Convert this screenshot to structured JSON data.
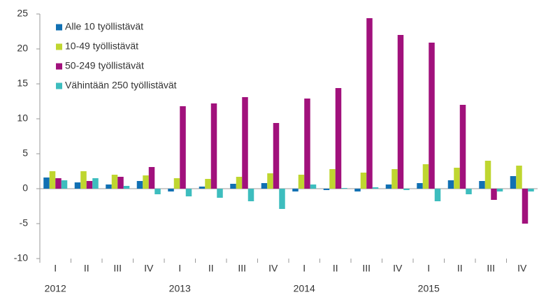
{
  "chart_data": {
    "type": "bar",
    "categories": [
      "I",
      "II",
      "III",
      "IV",
      "I",
      "II",
      "III",
      "IV",
      "I",
      "II",
      "III",
      "IV",
      "I",
      "II",
      "III",
      "IV"
    ],
    "years": [
      "2012",
      "2013",
      "2014",
      "2015"
    ],
    "series": [
      {
        "name": "Alle 10 työllistävät",
        "color": "#1170b3",
        "values": [
          1.6,
          0.9,
          0.6,
          1.1,
          -0.4,
          0.3,
          0.7,
          0.8,
          -0.4,
          -0.2,
          -0.4,
          0.6,
          0.8,
          1.2,
          1.1,
          1.8
        ]
      },
      {
        "name": "10-49 työllistävät",
        "color": "#bfd630",
        "values": [
          2.5,
          2.5,
          2.0,
          1.9,
          1.5,
          1.4,
          1.7,
          2.2,
          2.0,
          2.8,
          2.3,
          2.8,
          3.5,
          3.0,
          4.0,
          3.3
        ]
      },
      {
        "name": "50-249 työllistävät",
        "color": "#a1117c",
        "values": [
          1.5,
          1.1,
          1.7,
          3.1,
          11.8,
          12.2,
          13.1,
          9.4,
          12.9,
          14.4,
          24.4,
          22.0,
          20.9,
          12.0,
          -1.6,
          -5.0
        ]
      },
      {
        "name": "Vähintään 250 työllistävät",
        "color": "#3dbdbe",
        "values": [
          1.2,
          1.5,
          0.4,
          -0.8,
          -1.1,
          -1.3,
          -1.8,
          -2.9,
          0.6,
          0.1,
          0.2,
          -0.2,
          -1.8,
          -0.8,
          -0.4,
          -0.4
        ]
      }
    ],
    "ylim": [
      -10,
      25
    ],
    "yticks": [
      -10,
      -5,
      0,
      5,
      10,
      15,
      20,
      25
    ],
    "grid": false,
    "legend": "top-left"
  }
}
